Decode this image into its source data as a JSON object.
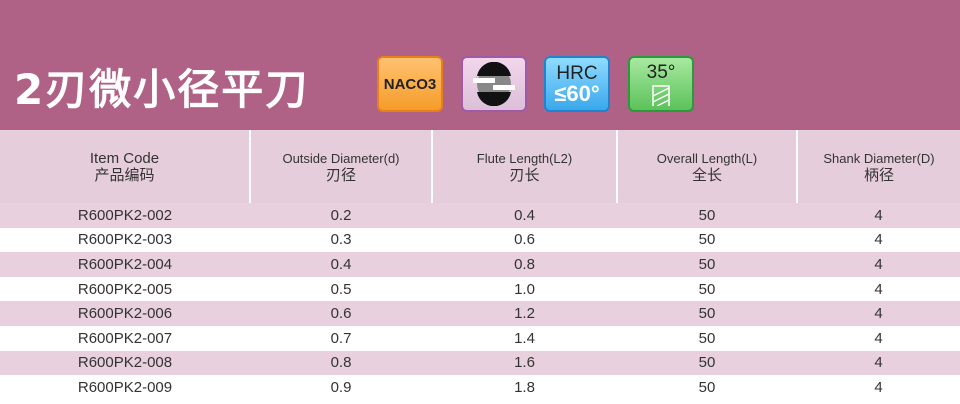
{
  "title": "2刃微小径平刀",
  "badges": {
    "material": "NACO3",
    "hrc_label": "HRC",
    "hrc_value": "≤60°",
    "helix": "35°"
  },
  "colors": {
    "banner": "#b06286",
    "header_row": "#e6cddb",
    "alt_row": "#e8d0de"
  },
  "columns": [
    {
      "en": "Item Code",
      "zh": "产品编码"
    },
    {
      "en": "Outside Diameter(d)",
      "zh": "刃径"
    },
    {
      "en": "Flute Length(L2)",
      "zh": "刃长"
    },
    {
      "en": "Overall Length(L)",
      "zh": "全长"
    },
    {
      "en": "Shank Diameter(D)",
      "zh": "柄径"
    }
  ],
  "rows": [
    [
      "R600PK2-002",
      "0.2",
      "0.4",
      "50",
      "4"
    ],
    [
      "R600PK2-003",
      "0.3",
      "0.6",
      "50",
      "4"
    ],
    [
      "R600PK2-004",
      "0.4",
      "0.8",
      "50",
      "4"
    ],
    [
      "R600PK2-005",
      "0.5",
      "1.0",
      "50",
      "4"
    ],
    [
      "R600PK2-006",
      "0.6",
      "1.2",
      "50",
      "4"
    ],
    [
      "R600PK2-007",
      "0.7",
      "1.4",
      "50",
      "4"
    ],
    [
      "R600PK2-008",
      "0.8",
      "1.6",
      "50",
      "4"
    ],
    [
      "R600PK2-009",
      "0.9",
      "1.8",
      "50",
      "4"
    ]
  ]
}
